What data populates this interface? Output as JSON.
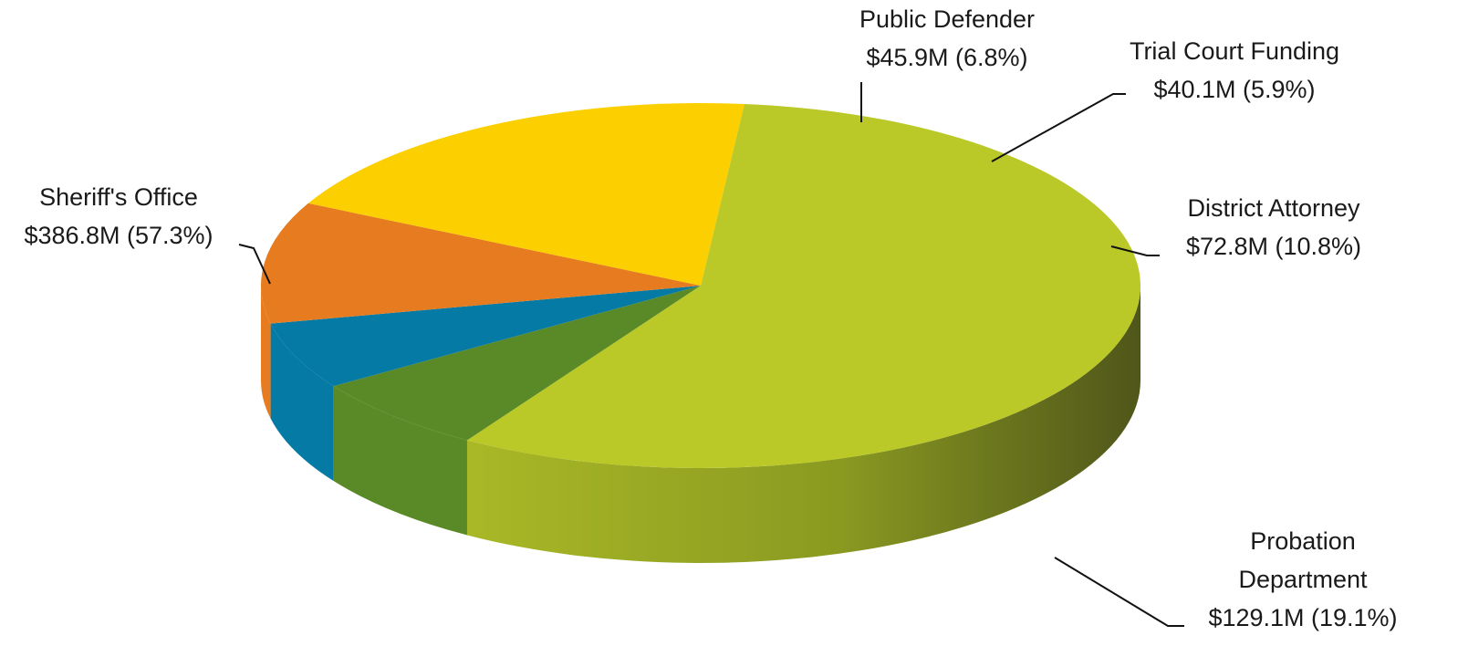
{
  "chart_data": {
    "type": "pie",
    "style": "3d",
    "title": "",
    "slices": [
      {
        "label": "Sheriff's Office",
        "value_label": "$386.8M (57.3%)",
        "value": 386.8,
        "percent": 57.3,
        "color": "#bac928"
      },
      {
        "label": "Public Defender",
        "value_label": "$45.9M (6.8%)",
        "value": 45.9,
        "percent": 6.8,
        "color": "#5a8a27"
      },
      {
        "label": "Trial Court Funding",
        "value_label": "$40.1M (5.9%)",
        "value": 40.1,
        "percent": 5.9,
        "color": "#047aa4"
      },
      {
        "label": "District Attorney",
        "value_label": "$72.8M (10.8%)",
        "value": 72.8,
        "percent": 10.8,
        "color": "#e67c1f"
      },
      {
        "label": "Probation Department",
        "label_lines": [
          "Probation",
          "Department"
        ],
        "value_label": "$129.1M (19.1%)",
        "value": 129.1,
        "percent": 19.1,
        "color": "#fbcf00"
      }
    ]
  }
}
